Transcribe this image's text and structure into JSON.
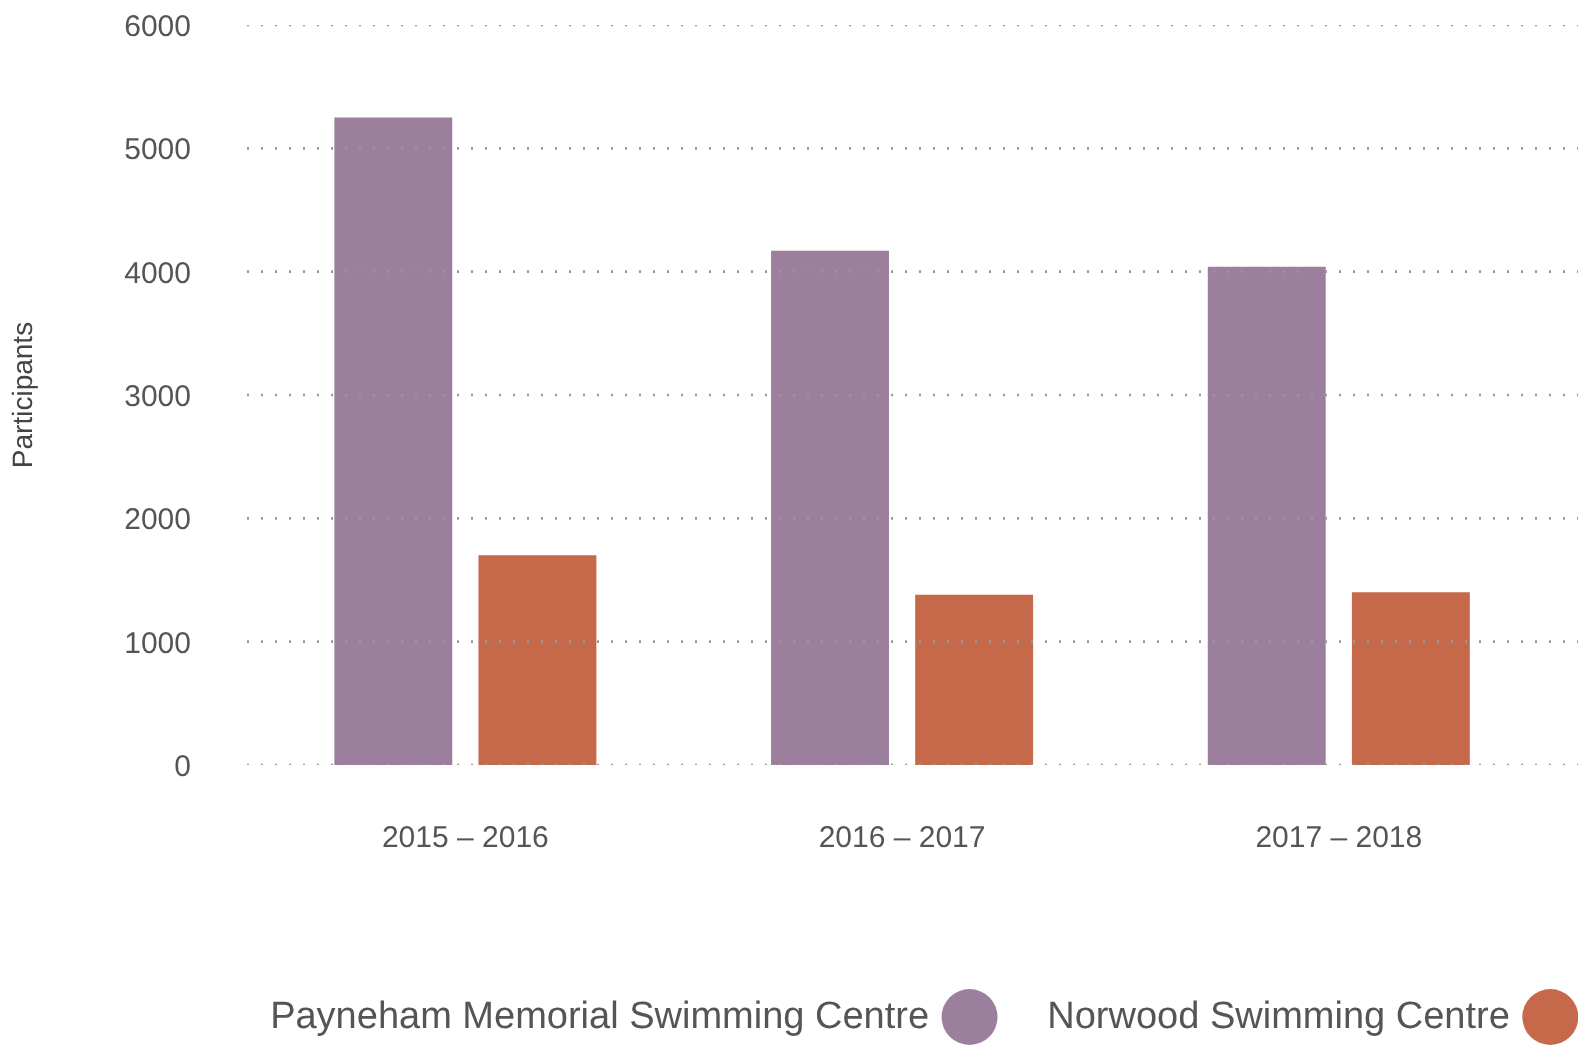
{
  "chart_data": {
    "type": "bar",
    "ylabel": "Participants",
    "categories": [
      "2015 – 2016",
      "2016 – 2017",
      "2017 – 2018"
    ],
    "series": [
      {
        "name": "Payneham Memorial Swimming Centre",
        "color": "#9b7f9d",
        "values": [
          5250,
          4170,
          4040
        ]
      },
      {
        "name": "Norwood Swimming Centre",
        "color": "#c6694a",
        "values": [
          1700,
          1380,
          1400
        ]
      }
    ],
    "ylim": [
      0,
      6000
    ],
    "yticks": [
      0,
      1000,
      2000,
      3000,
      4000,
      5000,
      6000
    ],
    "grid": "y",
    "legend": "bottom"
  }
}
